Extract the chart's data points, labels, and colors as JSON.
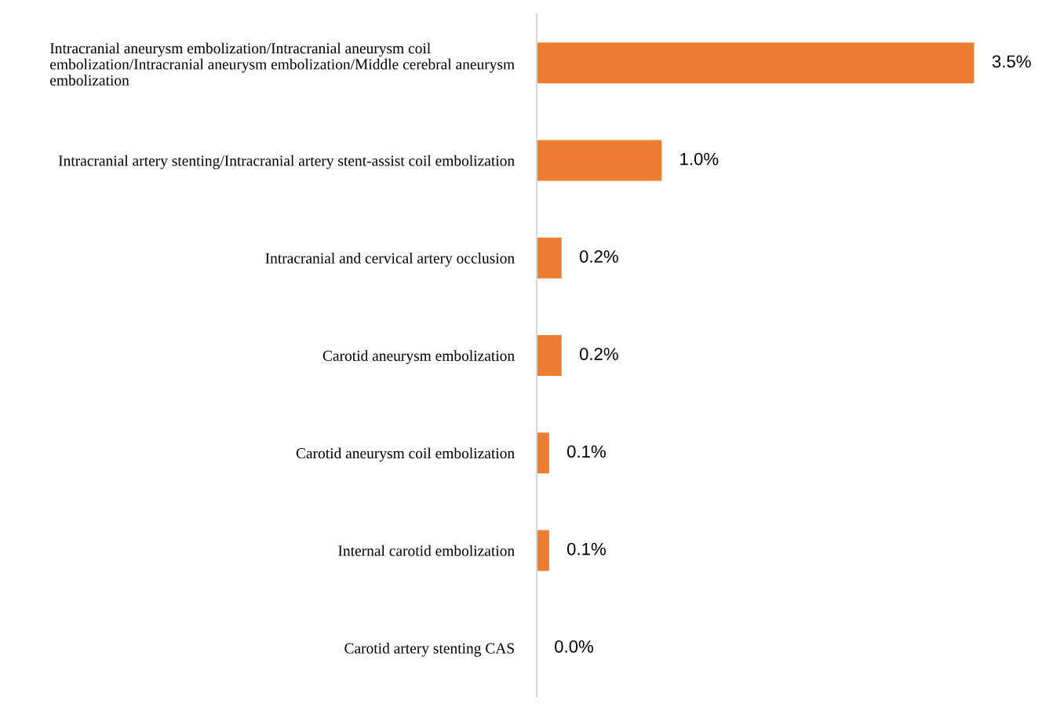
{
  "chart_data": {
    "type": "bar",
    "orientation": "horizontal",
    "categories": [
      "Intracranial aneurysm embolization/Intracranial aneurysm coil embolization/Intracranial aneurysm embolization/Middle cerebral aneurysm embolization",
      "Intracranial artery stenting/Intracranial artery stent-assist coil embolization",
      "Intracranial and cervical artery occlusion",
      "Carotid aneurysm embolization",
      "Carotid aneurysm coil embolization",
      "Internal carotid embolization",
      "Carotid artery stenting CAS"
    ],
    "values": [
      3.5,
      1.0,
      0.2,
      0.2,
      0.1,
      0.1,
      0.0
    ],
    "value_labels": [
      "3.5%",
      "1.0%",
      "0.2%",
      "0.2%",
      "0.1%",
      "0.1%",
      "0.0%"
    ],
    "color": "#ed7d31",
    "grid": false,
    "legend": false
  }
}
